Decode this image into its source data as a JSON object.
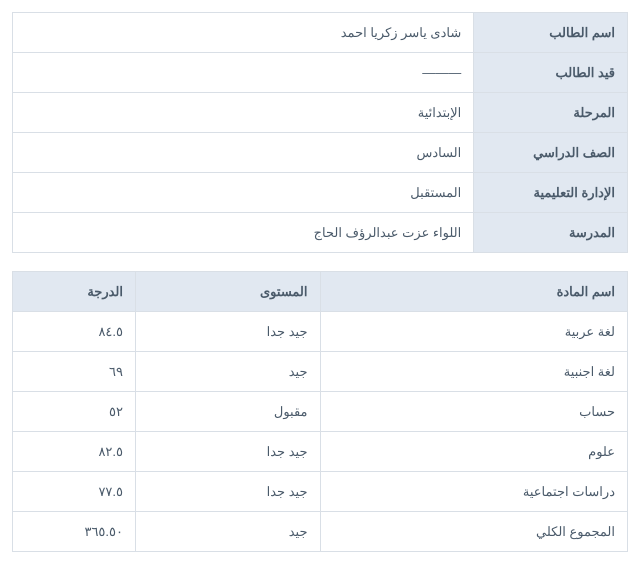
{
  "info": {
    "rows": [
      {
        "label": "اسم الطالب",
        "value": "شادى ياسر زكريا احمد"
      },
      {
        "label": "قيد الطالب",
        "value": "———"
      },
      {
        "label": "المرحلة",
        "value": "الإبتدائية"
      },
      {
        "label": "الصف الدراسي",
        "value": "السادس"
      },
      {
        "label": "الإدارة التعليمية",
        "value": "المستقبل"
      },
      {
        "label": "المدرسة",
        "value": "اللواء عزت عبدالرؤف الحاج"
      }
    ]
  },
  "grades": {
    "headers": {
      "subject": "اسم المادة",
      "level": "المستوى",
      "score": "الدرجة"
    },
    "rows": [
      {
        "subject": "لغة عربية",
        "level": "جيد جدا",
        "score": "٨٤.٥"
      },
      {
        "subject": "لغة اجنبية",
        "level": "جيد",
        "score": "٦٩"
      },
      {
        "subject": "حساب",
        "level": "مقبول",
        "score": "٥٢"
      },
      {
        "subject": "علوم",
        "level": "جيد جدا",
        "score": "٨٢.٥"
      },
      {
        "subject": "دراسات اجتماعية",
        "level": "جيد جدا",
        "score": "٧٧.٥"
      },
      {
        "subject": "المجموع الكلي",
        "level": "جيد",
        "score": "٣٦٥.٥٠"
      }
    ]
  },
  "colors": {
    "header_bg": "#e1e8f1",
    "border": "#d9dfe6",
    "text": "#4a5a6a",
    "cell_bg": "#ffffff"
  }
}
